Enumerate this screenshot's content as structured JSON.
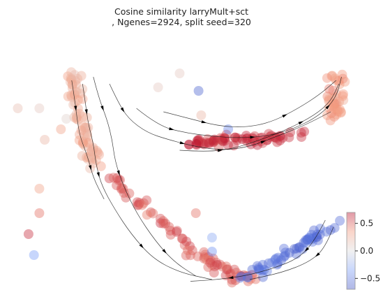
{
  "chart_data": {
    "type": "scatter",
    "title_line1": "Cosine similarity larryMult+sct",
    "title_line2": ", Ngenes=2924, split seed=320",
    "colormap": "coolwarm",
    "colorbar": {
      "range": [
        -0.7,
        0.7
      ],
      "ticks": [
        "0.5",
        "0.0",
        "−0.5"
      ],
      "tick_values": [
        0.5,
        0.0,
        -0.5
      ],
      "placement": "right"
    },
    "axes_visible": false,
    "grid": false,
    "overlay": "streamlines with arrowheads",
    "branches": [
      {
        "name": "upper-left branch",
        "from": [
          -2.0,
          2.6
        ],
        "to": [
          -1.6,
          -0.2
        ],
        "similarity": 0.25
      },
      {
        "name": "middle branch",
        "from": [
          0.2,
          0.6
        ],
        "to": [
          2.2,
          0.8
        ],
        "similarity": 0.6
      },
      {
        "name": "right arm",
        "from": [
          2.9,
          1.3
        ],
        "to": [
          2.9,
          2.6
        ],
        "similarity": 0.35
      },
      {
        "name": "lower curve",
        "from": [
          -1.5,
          -0.2
        ],
        "to": [
          1.5,
          -3.3
        ],
        "similarity": 0.5
      },
      {
        "name": "bottom arm",
        "from": [
          1.2,
          -3.3
        ],
        "to": [
          2.9,
          -1.7
        ],
        "similarity": -0.55
      }
    ]
  }
}
